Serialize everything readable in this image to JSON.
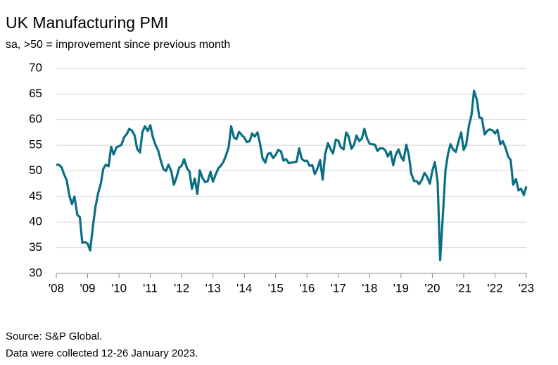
{
  "chart_data": {
    "type": "line",
    "title": "UK Manufacturing PMI",
    "subtitle": "sa, >50 = improvement since previous month",
    "source": "Source: S&P Global.",
    "note": "Data were collected 12-26 January 2023.",
    "x": [
      2008,
      2008.08,
      2008.17,
      2008.25,
      2008.33,
      2008.42,
      2008.5,
      2008.58,
      2008.67,
      2008.75,
      2008.83,
      2008.92,
      2009,
      2009.08,
      2009.17,
      2009.25,
      2009.33,
      2009.42,
      2009.5,
      2009.58,
      2009.67,
      2009.75,
      2009.83,
      2009.92,
      2010,
      2010.08,
      2010.17,
      2010.25,
      2010.33,
      2010.42,
      2010.5,
      2010.58,
      2010.67,
      2010.75,
      2010.83,
      2010.92,
      2011,
      2011.08,
      2011.17,
      2011.25,
      2011.33,
      2011.42,
      2011.5,
      2011.58,
      2011.67,
      2011.75,
      2011.83,
      2011.92,
      2012,
      2012.08,
      2012.17,
      2012.25,
      2012.33,
      2012.42,
      2012.5,
      2012.58,
      2012.67,
      2012.75,
      2012.83,
      2012.92,
      2013,
      2013.08,
      2013.17,
      2013.25,
      2013.33,
      2013.42,
      2013.5,
      2013.58,
      2013.67,
      2013.75,
      2013.83,
      2013.92,
      2014,
      2014.08,
      2014.17,
      2014.25,
      2014.33,
      2014.42,
      2014.5,
      2014.58,
      2014.67,
      2014.75,
      2014.83,
      2014.92,
      2015,
      2015.08,
      2015.17,
      2015.25,
      2015.33,
      2015.42,
      2015.5,
      2015.58,
      2015.67,
      2015.75,
      2015.83,
      2015.92,
      2016,
      2016.08,
      2016.17,
      2016.25,
      2016.33,
      2016.42,
      2016.5,
      2016.58,
      2016.67,
      2016.75,
      2016.83,
      2016.92,
      2017,
      2017.08,
      2017.17,
      2017.25,
      2017.33,
      2017.42,
      2017.5,
      2017.58,
      2017.67,
      2017.75,
      2017.83,
      2017.92,
      2018,
      2018.08,
      2018.17,
      2018.25,
      2018.33,
      2018.42,
      2018.5,
      2018.58,
      2018.67,
      2018.75,
      2018.83,
      2018.92,
      2019,
      2019.08,
      2019.17,
      2019.25,
      2019.33,
      2019.42,
      2019.5,
      2019.58,
      2019.67,
      2019.75,
      2019.83,
      2019.92,
      2020,
      2020.08,
      2020.17,
      2020.25,
      2020.33,
      2020.42,
      2020.5,
      2020.58,
      2020.67,
      2020.75,
      2020.83,
      2020.92,
      2021,
      2021.08,
      2021.17,
      2021.25,
      2021.33,
      2021.42,
      2021.5,
      2021.58,
      2021.67,
      2021.75,
      2021.83,
      2021.92,
      2022,
      2022.08,
      2022.17,
      2022.25,
      2022.33,
      2022.42,
      2022.5,
      2022.58,
      2022.67,
      2022.75,
      2022.83,
      2022.92,
      2023
    ],
    "series": [
      {
        "name": "UK Manufacturing PMI",
        "color": "#0b6e84",
        "values": [
          51.2,
          51.2,
          50.7,
          49.3,
          48.2,
          45.1,
          43.5,
          45.0,
          41.4,
          41.0,
          36.0,
          36.1,
          35.8,
          34.5,
          39.2,
          43.0,
          45.5,
          47.5,
          50.4,
          51.2,
          50.9,
          54.7,
          53.2,
          54.6,
          54.8,
          55.1,
          56.6,
          57.2,
          58.2,
          57.8,
          56.9,
          54.3,
          53.6,
          57.6,
          58.7,
          57.8,
          58.9,
          56.6,
          55.0,
          54.0,
          52.1,
          50.3,
          50.0,
          51.2,
          49.9,
          47.3,
          48.6,
          50.6,
          51.0,
          52.3,
          50.5,
          49.9,
          46.5,
          48.5,
          45.5,
          50.1,
          48.6,
          47.8,
          48.0,
          49.8,
          47.9,
          49.2,
          50.5,
          51.0,
          51.7,
          53.1,
          54.6,
          58.7,
          56.5,
          56.2,
          57.6,
          57.0,
          56.5,
          55.6,
          55.8,
          57.3,
          56.7,
          57.5,
          55.4,
          52.5,
          51.6,
          53.3,
          53.5,
          52.5,
          53.1,
          54.1,
          53.8,
          52.0,
          52.3,
          51.5,
          51.6,
          51.7,
          51.8,
          54.4,
          52.4,
          51.9,
          52.0,
          51.0,
          51.1,
          49.4,
          50.4,
          52.1,
          48.3,
          53.3,
          55.4,
          54.3,
          53.4,
          56.1,
          55.9,
          54.6,
          54.2,
          57.5,
          56.7,
          54.3,
          55.1,
          56.9,
          55.8,
          56.3,
          58.2,
          56.3,
          55.3,
          55.2,
          55.1,
          53.9,
          54.4,
          54.4,
          54.0,
          52.8,
          53.8,
          51.1,
          53.1,
          54.2,
          52.8,
          52.0,
          55.1,
          53.1,
          49.4,
          48.0,
          48.0,
          47.4,
          48.3,
          49.6,
          48.9,
          47.5,
          50.0,
          51.7,
          47.8,
          32.6,
          40.7,
          50.1,
          53.3,
          55.2,
          54.1,
          53.7,
          55.6,
          57.5,
          54.1,
          55.1,
          58.9,
          60.9,
          65.6,
          63.9,
          60.4,
          60.3,
          57.1,
          57.8,
          58.1,
          57.9,
          57.3,
          58.0,
          55.2,
          55.8,
          54.6,
          52.8,
          52.1,
          47.3,
          48.4,
          46.2,
          46.5,
          45.3,
          47.0
        ]
      }
    ],
    "xlim": [
      2008,
      2023
    ],
    "xticks": [
      {
        "value": 2008,
        "label": "'08"
      },
      {
        "value": 2009,
        "label": "'09"
      },
      {
        "value": 2010,
        "label": "'10"
      },
      {
        "value": 2011,
        "label": "'11"
      },
      {
        "value": 2012,
        "label": "'12"
      },
      {
        "value": 2013,
        "label": "'13"
      },
      {
        "value": 2014,
        "label": "'14"
      },
      {
        "value": 2015,
        "label": "'15"
      },
      {
        "value": 2016,
        "label": "'16"
      },
      {
        "value": 2017,
        "label": "'17"
      },
      {
        "value": 2018,
        "label": "'18"
      },
      {
        "value": 2019,
        "label": "'19"
      },
      {
        "value": 2020,
        "label": "'20"
      },
      {
        "value": 2021,
        "label": "'21"
      },
      {
        "value": 2022,
        "label": "'22"
      },
      {
        "value": 2023,
        "label": "'23"
      }
    ],
    "ylim": [
      30,
      70
    ],
    "yticks": [
      30,
      35,
      40,
      45,
      50,
      55,
      60,
      65,
      70
    ],
    "grid": true
  }
}
